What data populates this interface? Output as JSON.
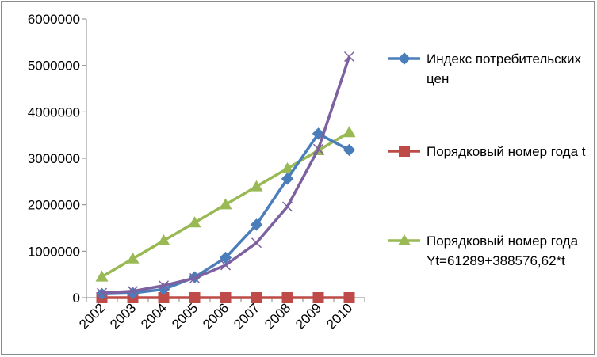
{
  "chart_data": {
    "type": "line",
    "categories": [
      "2002",
      "2003",
      "2004",
      "2005",
      "2006",
      "2007",
      "2008",
      "2009",
      "2010"
    ],
    "ylim": [
      0,
      6000000
    ],
    "yticks": [
      0,
      1000000,
      2000000,
      3000000,
      4000000,
      5000000,
      6000000
    ],
    "ytick_labels": [
      "0",
      "1000000",
      "2000000",
      "3000000",
      "4000000",
      "5000000",
      "6000000"
    ],
    "grid": false,
    "legend_position": "right",
    "series": [
      {
        "name": "Индекс потребительских цен",
        "color": "#4a7ebb",
        "marker": "diamond",
        "values": [
          80000,
          100000,
          180000,
          440000,
          860000,
          1570000,
          2560000,
          3530000,
          3180000
        ]
      },
      {
        "name": "Порядковый номер года t",
        "color": "#be4b48",
        "marker": "square",
        "values": [
          1,
          2,
          3,
          4,
          5,
          6,
          7,
          8,
          9
        ]
      },
      {
        "name": "Порядковый номер года Yt=61289+388576,62*t",
        "color": "#98b954",
        "marker": "triangle",
        "values": [
          449866,
          838442,
          1227019,
          1615595,
          2004172,
          2392749,
          2781325,
          3169902,
          3558479
        ]
      },
      {
        "name": "",
        "color": "#7d60a0",
        "marker": "x",
        "values": [
          100000,
          140000,
          260000,
          420000,
          700000,
          1180000,
          1960000,
          3200000,
          5190000
        ]
      }
    ]
  }
}
